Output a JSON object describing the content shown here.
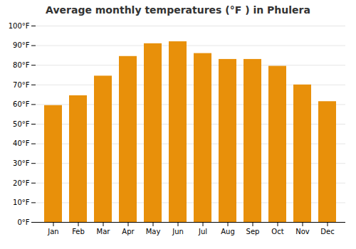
{
  "chart_data": {
    "type": "bar",
    "title": "Average monthly temperatures (°F ) in Phulera",
    "categories": [
      "Jan",
      "Feb",
      "Mar",
      "Apr",
      "May",
      "Jun",
      "Jul",
      "Aug",
      "Sep",
      "Oct",
      "Nov",
      "Dec"
    ],
    "values": [
      59.5,
      64.5,
      74.5,
      84.5,
      91.0,
      92.0,
      86.0,
      83.0,
      83.0,
      79.5,
      70.0,
      61.5
    ],
    "color": "#E8900A",
    "ylim": [
      0,
      100
    ],
    "yticks": [
      {
        "value": 0,
        "label": "0°F"
      },
      {
        "value": 10,
        "label": "10°F"
      },
      {
        "value": 20,
        "label": "20°F"
      },
      {
        "value": 30,
        "label": "30°F"
      },
      {
        "value": 40,
        "label": "40°F"
      },
      {
        "value": 50,
        "label": "50°F"
      },
      {
        "value": 60,
        "label": "60°F"
      },
      {
        "value": 70,
        "label": "70°F"
      },
      {
        "value": 80,
        "label": "80°F"
      },
      {
        "value": 90,
        "label": "90°F"
      },
      {
        "value": 100,
        "label": "100°F"
      }
    ],
    "grid": true
  }
}
